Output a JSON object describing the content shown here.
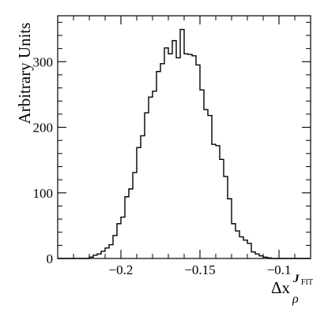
{
  "chart_data": {
    "type": "histogram",
    "title": "",
    "xlabel_base": "Δx",
    "xlabel_sub": "ρ",
    "xlabel_sup_main": "J",
    "xlabel_sup_small": "FIT",
    "ylabel": "Arbitrary Units",
    "xlim": [
      -0.24,
      -0.08
    ],
    "ylim": [
      0,
      370
    ],
    "grid": false,
    "x_ticks": [
      -0.2,
      -0.15,
      -0.1
    ],
    "x_tick_labels": [
      "−0.2",
      "−0.15",
      "−0.1"
    ],
    "y_ticks": [
      0,
      100,
      200,
      300
    ],
    "y_tick_labels": [
      "0",
      "100",
      "200",
      "300"
    ],
    "bin_edges": [
      -0.22,
      -0.2175,
      -0.215,
      -0.2125,
      -0.21,
      -0.2075,
      -0.205,
      -0.2025,
      -0.2,
      -0.1975,
      -0.195,
      -0.1925,
      -0.19,
      -0.1875,
      -0.185,
      -0.1825,
      -0.18,
      -0.1775,
      -0.175,
      -0.1725,
      -0.17,
      -0.1675,
      -0.165,
      -0.1625,
      -0.16,
      -0.1575,
      -0.155,
      -0.1525,
      -0.15,
      -0.1475,
      -0.145,
      -0.1425,
      -0.14,
      -0.1375,
      -0.135,
      -0.1325,
      -0.13,
      -0.1275,
      -0.125,
      -0.1225,
      -0.12,
      -0.1175,
      -0.115,
      -0.1125,
      -0.11,
      -0.1075,
      -0.105,
      -0.1025,
      -0.1
    ],
    "values": [
      2,
      5,
      7,
      11,
      16,
      21,
      35,
      53,
      63,
      94,
      106,
      131,
      169,
      187,
      222,
      246,
      255,
      285,
      297,
      321,
      312,
      332,
      306,
      349,
      312,
      311,
      309,
      295,
      257,
      227,
      218,
      174,
      172,
      151,
      125,
      91,
      53,
      42,
      33,
      28,
      23,
      10,
      7,
      4,
      2,
      1,
      0,
      0
    ]
  }
}
